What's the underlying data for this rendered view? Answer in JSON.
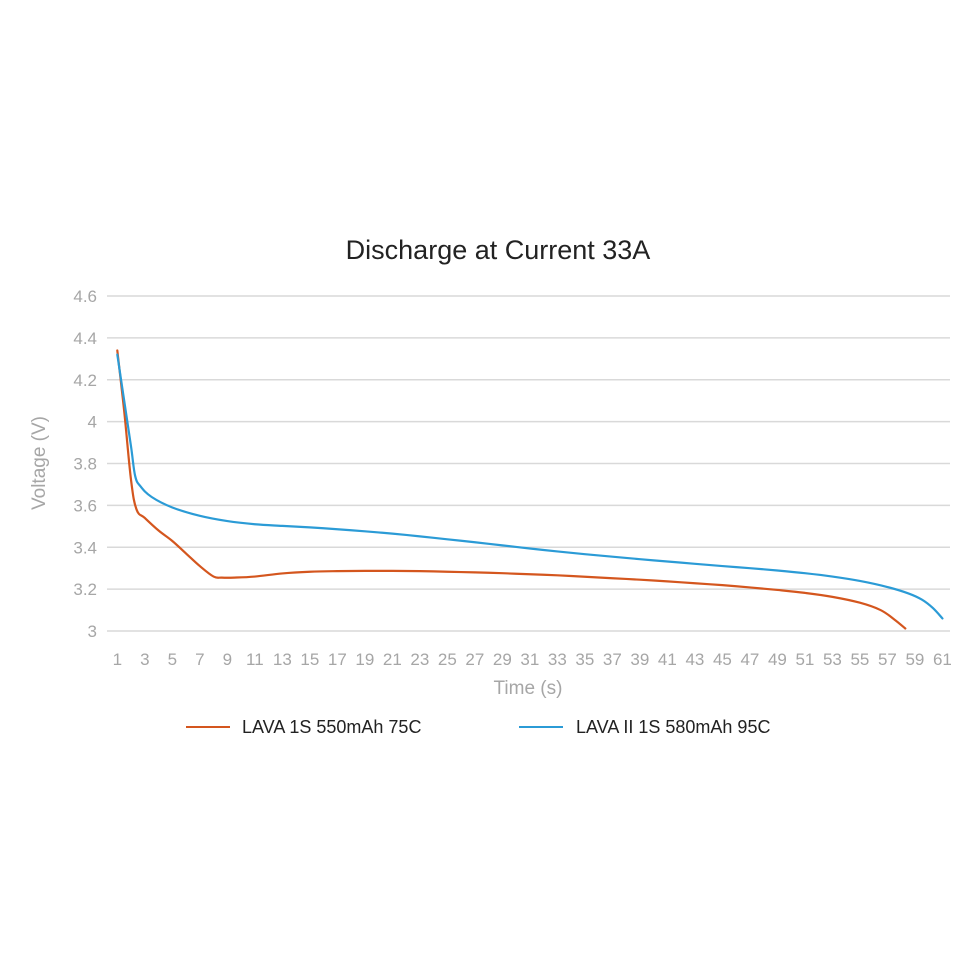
{
  "chart_data": {
    "type": "line",
    "title": "Discharge at Current 33A",
    "xlabel": "Time (s)",
    "ylabel": "Voltage (V)",
    "ylim": [
      3,
      4.6
    ],
    "xlim": [
      1,
      61
    ],
    "y_ticks": [
      3,
      3.2,
      3.4,
      3.6,
      3.8,
      4,
      4.2,
      4.4,
      4.6
    ],
    "y_tick_labels": [
      "3",
      "3.2",
      "3.4",
      "3.6",
      "3.8",
      "4",
      "4.2",
      "4.4",
      "4.6"
    ],
    "x_ticks": [
      1,
      3,
      5,
      7,
      9,
      11,
      13,
      15,
      17,
      19,
      21,
      23,
      25,
      27,
      29,
      31,
      33,
      35,
      37,
      39,
      41,
      43,
      45,
      47,
      49,
      51,
      53,
      55,
      57,
      59,
      61
    ],
    "grid": true,
    "legend_position": "bottom",
    "series": [
      {
        "name": "LAVA 1S 550mAh 75C",
        "color": "#D4561E",
        "x": [
          1,
          1.5,
          2,
          2.4,
          3,
          4,
          5,
          6,
          7,
          8,
          8.6,
          9.5,
          11,
          13,
          15,
          17,
          19,
          21,
          23,
          25,
          27,
          29,
          31,
          33,
          35,
          37,
          39,
          41,
          43,
          45,
          47,
          49,
          51,
          53,
          55,
          56.5,
          57.5,
          58.3
        ],
        "y": [
          4.34,
          4.05,
          3.72,
          3.58,
          3.54,
          3.48,
          3.43,
          3.37,
          3.31,
          3.26,
          3.255,
          3.255,
          3.26,
          3.275,
          3.283,
          3.286,
          3.287,
          3.287,
          3.286,
          3.283,
          3.28,
          3.276,
          3.271,
          3.266,
          3.259,
          3.252,
          3.245,
          3.237,
          3.228,
          3.219,
          3.208,
          3.196,
          3.182,
          3.163,
          3.135,
          3.1,
          3.055,
          3.012
        ]
      },
      {
        "name": "LAVA II 1S 580mAh 95C",
        "color": "#2B9BD6",
        "x": [
          1,
          1.5,
          2,
          2.3,
          2.7,
          3.5,
          5,
          7,
          9,
          11,
          13,
          15,
          17,
          19,
          21,
          23,
          25,
          27,
          29,
          31,
          33,
          35,
          37,
          39,
          41,
          43,
          45,
          47,
          49,
          51,
          53,
          55,
          57,
          58.5,
          59.5,
          60.3,
          61
        ],
        "y": [
          4.32,
          4.1,
          3.88,
          3.74,
          3.69,
          3.64,
          3.59,
          3.55,
          3.525,
          3.51,
          3.502,
          3.495,
          3.486,
          3.476,
          3.465,
          3.452,
          3.438,
          3.424,
          3.409,
          3.394,
          3.38,
          3.367,
          3.355,
          3.343,
          3.332,
          3.321,
          3.31,
          3.3,
          3.289,
          3.276,
          3.26,
          3.239,
          3.21,
          3.18,
          3.15,
          3.11,
          3.06
        ]
      }
    ]
  }
}
